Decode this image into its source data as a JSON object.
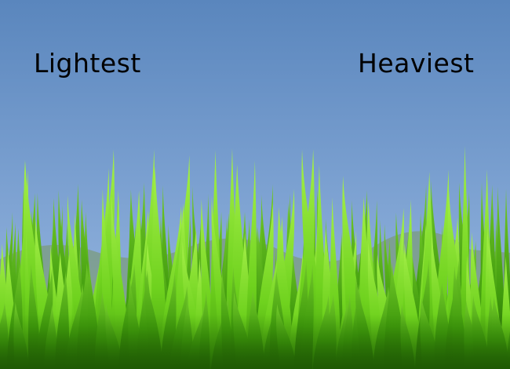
{
  "labels": {
    "left": "Lightest",
    "right": "Heaviest"
  },
  "colors": {
    "sky_top": "#5a86bd",
    "sky_bottom": "#8fb0dd",
    "grass_light": "#8ee63a",
    "grass_mid": "#5cbf14",
    "grass_dark": "#2e7a06",
    "grass_shadow": "#6f8a6a",
    "text": "#000000"
  }
}
